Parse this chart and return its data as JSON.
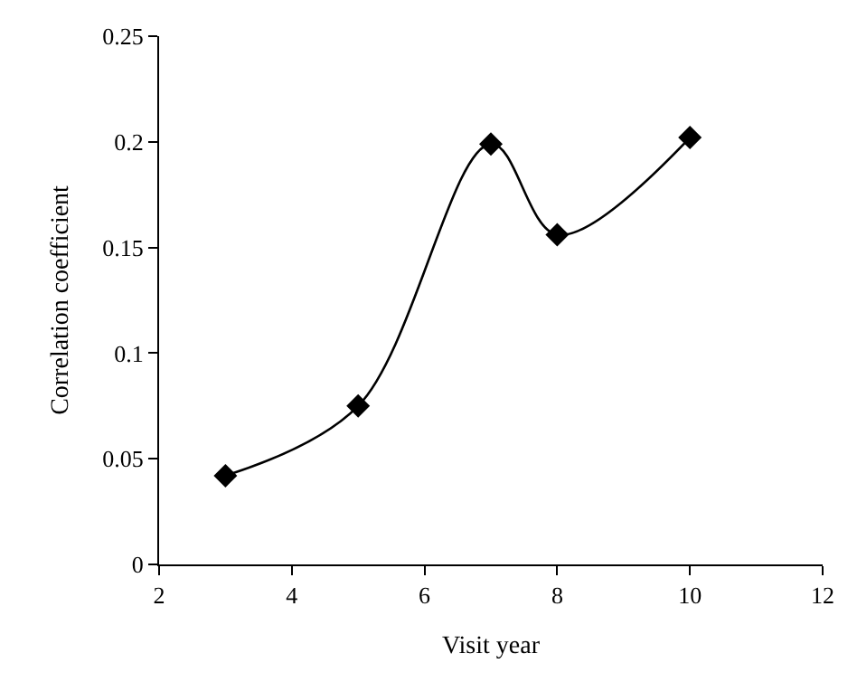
{
  "chart_data": {
    "type": "line",
    "xlabel": "Visit year",
    "ylabel": "Correlation coefficient",
    "x": [
      3,
      5,
      7,
      8,
      10
    ],
    "series": [
      {
        "color": "#000000",
        "values": [
          0.042,
          0.075,
          0.199,
          0.156,
          0.202
        ]
      }
    ],
    "xlim": [
      2,
      12
    ],
    "xticks": [
      2,
      4,
      6,
      8,
      10,
      12
    ],
    "ylim": [
      0,
      0.25
    ],
    "yticks": [
      0,
      0.05,
      0.1,
      0.15,
      0.2,
      0.25
    ],
    "marker": "diamond"
  }
}
